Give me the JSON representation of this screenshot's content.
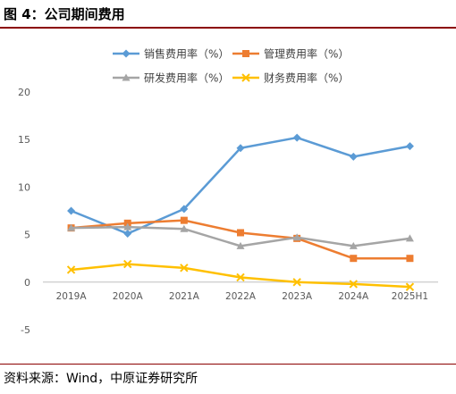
{
  "header": {
    "title": "图 4：公司期间费用"
  },
  "footer": {
    "source": "资料来源：Wind，中原证券研究所"
  },
  "colors": {
    "sales": "#5B9BD5",
    "admin": "#ED7D31",
    "rd": "#A5A5A5",
    "finance": "#FFC000"
  },
  "chart_data": {
    "type": "line",
    "categories": [
      "2019A",
      "2020A",
      "2021A",
      "2022A",
      "2023A",
      "2024A",
      "2025H1"
    ],
    "y_ticks": [
      "20",
      "15",
      "10",
      "5",
      "0",
      "-5"
    ],
    "ylim": [
      -5,
      20
    ],
    "grid": false,
    "legend_position": "top",
    "series": [
      {
        "name": "销售费用率（%）",
        "key": "sales",
        "marker": "diamond",
        "values": [
          7.5,
          5.1,
          7.7,
          14.1,
          15.2,
          13.2,
          14.3
        ]
      },
      {
        "name": "管理费用率（%）",
        "key": "admin",
        "marker": "square",
        "values": [
          5.7,
          6.2,
          6.5,
          5.2,
          4.6,
          2.5,
          2.5
        ]
      },
      {
        "name": "研发费用率（%）",
        "key": "rd",
        "marker": "triangle",
        "values": [
          5.7,
          5.8,
          5.6,
          3.8,
          4.7,
          3.8,
          4.6
        ]
      },
      {
        "name": "财务费用率（%）",
        "key": "finance",
        "marker": "x",
        "values": [
          1.3,
          1.9,
          1.5,
          0.5,
          0.0,
          -0.2,
          -0.5
        ]
      }
    ]
  }
}
